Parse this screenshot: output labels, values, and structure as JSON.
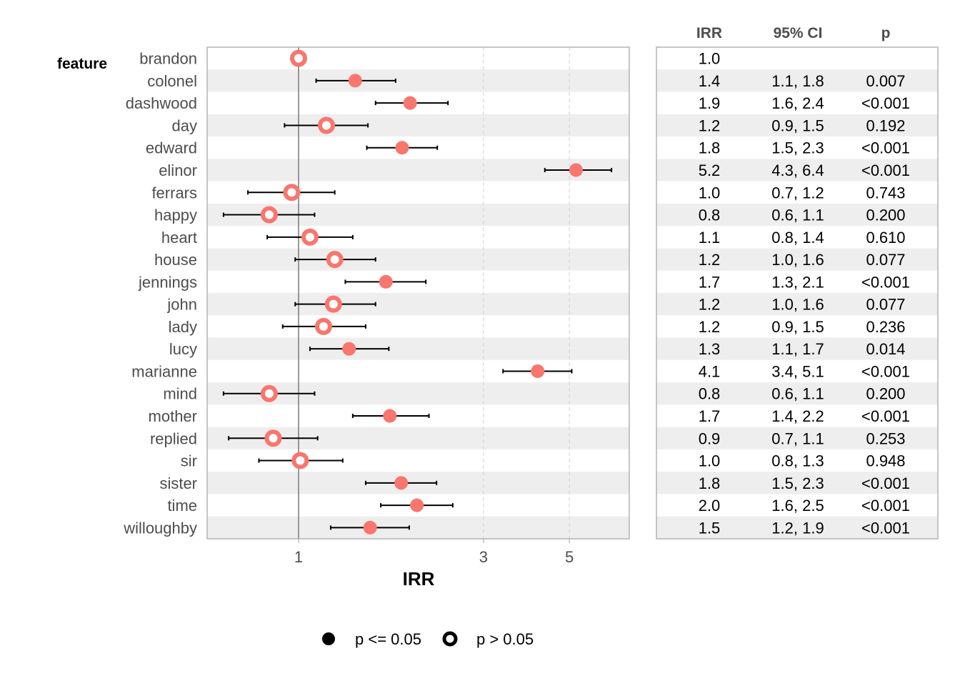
{
  "chart_data": {
    "type": "forest",
    "facet_label": "feature",
    "xlabel": "IRR",
    "xscale": "log",
    "xlim": [
      0.58,
      6.9
    ],
    "xticks": [
      1,
      3,
      5
    ],
    "xtick_labels": [
      "1",
      "3",
      "5"
    ],
    "reference_line": 1,
    "point_color": "#F8766D",
    "table_headers": [
      "IRR",
      "95% CI",
      "p"
    ],
    "legend": [
      {
        "shape": "filled-circle",
        "label": "p <= 0.05"
      },
      {
        "shape": "open-circle",
        "label": "p > 0.05"
      }
    ],
    "rows": [
      {
        "feature": "brandon",
        "irr": 1.0,
        "lo": null,
        "hi": null,
        "significant": false,
        "irr_label": "1.0",
        "ci_label": "",
        "p_label": ""
      },
      {
        "feature": "colonel",
        "irr": 1.4,
        "lo": 1.11,
        "hi": 1.78,
        "significant": true,
        "irr_label": "1.4",
        "ci_label": "1.1, 1.8",
        "p_label": "0.007"
      },
      {
        "feature": "dashwood",
        "irr": 1.94,
        "lo": 1.58,
        "hi": 2.43,
        "significant": true,
        "irr_label": "1.9",
        "ci_label": "1.6, 2.4",
        "p_label": "<0.001"
      },
      {
        "feature": "day",
        "irr": 1.18,
        "lo": 0.92,
        "hi": 1.51,
        "significant": false,
        "irr_label": "1.2",
        "ci_label": "0.9, 1.5",
        "p_label": "0.192"
      },
      {
        "feature": "edward",
        "irr": 1.85,
        "lo": 1.5,
        "hi": 2.28,
        "significant": true,
        "irr_label": "1.8",
        "ci_label": "1.5, 2.3",
        "p_label": "<0.001"
      },
      {
        "feature": "elinor",
        "irr": 5.2,
        "lo": 4.32,
        "hi": 6.42,
        "significant": true,
        "irr_label": "5.2",
        "ci_label": "4.3, 6.4",
        "p_label": "<0.001"
      },
      {
        "feature": "ferrars",
        "irr": 0.96,
        "lo": 0.74,
        "hi": 1.24,
        "significant": false,
        "irr_label": "1.0",
        "ci_label": "0.7, 1.2",
        "p_label": "0.743"
      },
      {
        "feature": "happy",
        "irr": 0.84,
        "lo": 0.64,
        "hi": 1.1,
        "significant": false,
        "irr_label": "0.8",
        "ci_label": "0.6, 1.1",
        "p_label": "0.200"
      },
      {
        "feature": "heart",
        "irr": 1.07,
        "lo": 0.83,
        "hi": 1.38,
        "significant": false,
        "irr_label": "1.1",
        "ci_label": "0.8, 1.4",
        "p_label": "0.610"
      },
      {
        "feature": "house",
        "irr": 1.24,
        "lo": 0.98,
        "hi": 1.58,
        "significant": false,
        "irr_label": "1.2",
        "ci_label": "1.0, 1.6",
        "p_label": "0.077"
      },
      {
        "feature": "jennings",
        "irr": 1.68,
        "lo": 1.32,
        "hi": 2.13,
        "significant": true,
        "irr_label": "1.7",
        "ci_label": "1.3, 2.1",
        "p_label": "<0.001"
      },
      {
        "feature": "john",
        "irr": 1.23,
        "lo": 0.98,
        "hi": 1.58,
        "significant": false,
        "irr_label": "1.2",
        "ci_label": "1.0, 1.6",
        "p_label": "0.077"
      },
      {
        "feature": "lady",
        "irr": 1.16,
        "lo": 0.91,
        "hi": 1.49,
        "significant": false,
        "irr_label": "1.2",
        "ci_label": "0.9, 1.5",
        "p_label": "0.236"
      },
      {
        "feature": "lucy",
        "irr": 1.35,
        "lo": 1.07,
        "hi": 1.71,
        "significant": true,
        "irr_label": "1.3",
        "ci_label": "1.1, 1.7",
        "p_label": "0.014"
      },
      {
        "feature": "marianne",
        "irr": 4.14,
        "lo": 3.37,
        "hi": 5.07,
        "significant": true,
        "irr_label": "4.1",
        "ci_label": "3.4, 5.1",
        "p_label": "<0.001"
      },
      {
        "feature": "mind",
        "irr": 0.84,
        "lo": 0.64,
        "hi": 1.1,
        "significant": false,
        "irr_label": "0.8",
        "ci_label": "0.6, 1.1",
        "p_label": "0.200"
      },
      {
        "feature": "mother",
        "irr": 1.72,
        "lo": 1.38,
        "hi": 2.17,
        "significant": true,
        "irr_label": "1.7",
        "ci_label": "1.4, 2.2",
        "p_label": "<0.001"
      },
      {
        "feature": "replied",
        "irr": 0.86,
        "lo": 0.66,
        "hi": 1.12,
        "significant": false,
        "irr_label": "0.9",
        "ci_label": "0.7, 1.1",
        "p_label": "0.253"
      },
      {
        "feature": "sir",
        "irr": 1.01,
        "lo": 0.79,
        "hi": 1.3,
        "significant": false,
        "irr_label": "1.0",
        "ci_label": "0.8, 1.3",
        "p_label": "0.948"
      },
      {
        "feature": "sister",
        "irr": 1.84,
        "lo": 1.49,
        "hi": 2.27,
        "significant": true,
        "irr_label": "1.8",
        "ci_label": "1.5, 2.3",
        "p_label": "<0.001"
      },
      {
        "feature": "time",
        "irr": 2.02,
        "lo": 1.63,
        "hi": 2.5,
        "significant": true,
        "irr_label": "2.0",
        "ci_label": "1.6, 2.5",
        "p_label": "<0.001"
      },
      {
        "feature": "willoughby",
        "irr": 1.53,
        "lo": 1.21,
        "hi": 1.93,
        "significant": true,
        "irr_label": "1.5",
        "ci_label": "1.2, 1.9",
        "p_label": "<0.001"
      }
    ]
  }
}
